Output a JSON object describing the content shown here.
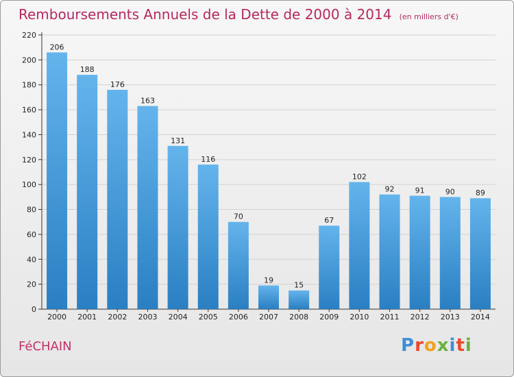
{
  "chart_data": {
    "type": "bar",
    "title": "Remboursements Annuels de la Dette de 2000 à 2014",
    "subtitle": "(en milliers d'€)",
    "categories": [
      "2000",
      "2001",
      "2002",
      "2003",
      "2004",
      "2005",
      "2006",
      "2007",
      "2008",
      "2009",
      "2010",
      "2011",
      "2012",
      "2013",
      "2014"
    ],
    "values": [
      206,
      188,
      176,
      163,
      131,
      116,
      70,
      19,
      15,
      67,
      102,
      92,
      91,
      90,
      89
    ],
    "ylim": [
      0,
      220
    ],
    "yticks": [
      0,
      20,
      40,
      60,
      80,
      100,
      120,
      140,
      160,
      180,
      200,
      220
    ],
    "grid": true,
    "xlabel": "",
    "ylabel": ""
  },
  "footer": {
    "commune": "FéCHAIN",
    "brand_letters": [
      {
        "char": "P",
        "color": "#3d8fd6"
      },
      {
        "char": "r",
        "color": "#e8492e"
      },
      {
        "char": "o",
        "color": "#f2a11f"
      },
      {
        "char": "x",
        "color": "#6ab23e"
      },
      {
        "char": "i",
        "color": "#3d8fd6"
      },
      {
        "char": "t",
        "color": "#e8492e"
      },
      {
        "char": "i",
        "color": "#6ab23e"
      }
    ]
  },
  "colors": {
    "bar_top": "#64b4ec",
    "bar_bottom": "#2a7fc2",
    "grid": "#d2d2d2",
    "axis": "#333333",
    "title": "#b5285f"
  }
}
